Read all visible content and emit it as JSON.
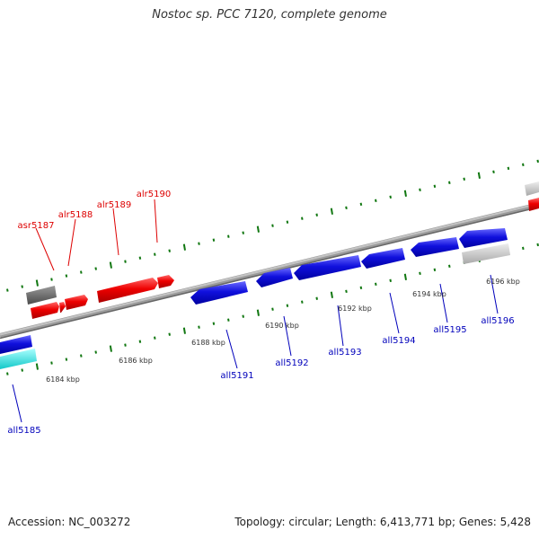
{
  "title": "Nostoc sp. PCC 7120, complete genome",
  "footer": {
    "accession": "Accession: NC_003272",
    "topology": "Topology: circular; Length: 6,413,771 bp; Genes: 5,428"
  },
  "colors": {
    "backbone": "#808080",
    "forward_gene": "#ee0000",
    "reverse_gene": "#1010dd",
    "tick": "#117711",
    "dark_gene": "#666666",
    "light_gene": "#c8c8c8",
    "cyan_gene": "#22dddd"
  },
  "scale_labels": [
    "6184 kbp",
    "6186 kbp",
    "6188 kbp",
    "6190 kbp",
    "6192 kbp",
    "6194 kbp",
    "6196 kbp"
  ],
  "forward_labels": [
    "asr5187",
    "alr5188",
    "alr5189",
    "alr5190"
  ],
  "reverse_labels": [
    "all5185",
    "all5191",
    "all5192",
    "all5193",
    "all5194",
    "all5195",
    "all5196"
  ]
}
